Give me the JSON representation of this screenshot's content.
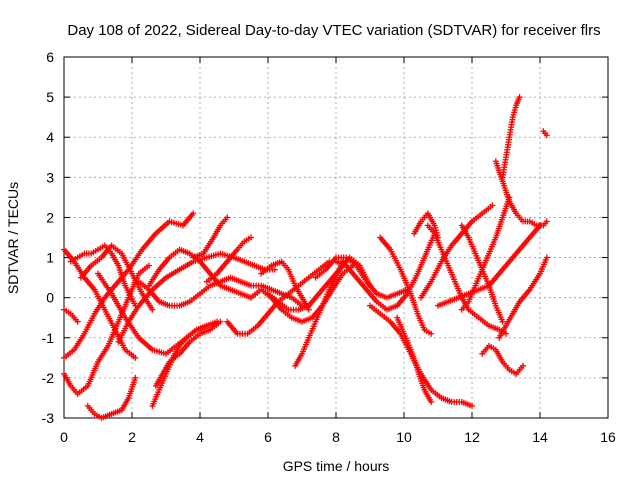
{
  "chart_data": {
    "type": "scatter",
    "title": "Day 108 of 2022, Sidereal Day-to-day VTEC variation (SDTVAR) for receiver flrs",
    "xlabel": "GPS time / hours",
    "ylabel": "SDTVAR / TECUs",
    "xlim": [
      0,
      16
    ],
    "ylim": [
      -3,
      6
    ],
    "xticks": [
      0,
      2,
      4,
      6,
      8,
      10,
      12,
      14,
      16
    ],
    "yticks": [
      -3,
      -2,
      -1,
      0,
      1,
      2,
      3,
      4,
      5,
      6
    ],
    "grid": true,
    "marker": "+",
    "color": "#ff0000",
    "series": [
      {
        "x": [
          0.0,
          0.3,
          0.6,
          0.9,
          1.2,
          1.5,
          1.8,
          2.1
        ],
        "y": [
          1.2,
          0.9,
          0.5,
          0.2,
          -0.3,
          -0.8,
          -1.3,
          -1.5
        ]
      },
      {
        "x": [
          0.0,
          0.3,
          0.6,
          0.9,
          1.2,
          1.5,
          1.9,
          2.3,
          2.7,
          3.1,
          3.5,
          3.8
        ],
        "y": [
          -1.5,
          -1.3,
          -0.9,
          -0.4,
          0.0,
          0.3,
          0.7,
          1.2,
          1.6,
          1.9,
          1.8,
          2.1
        ]
      },
      {
        "x": [
          0.0,
          0.2,
          0.4,
          0.7,
          1.0,
          1.3,
          1.6,
          1.9,
          2.2,
          2.5
        ],
        "y": [
          -1.9,
          -2.2,
          -2.4,
          -2.2,
          -1.6,
          -1.2,
          -0.6,
          0.0,
          0.6,
          0.8
        ]
      },
      {
        "x": [
          0.2,
          0.4,
          0.6,
          0.8,
          1.0,
          1.2,
          1.4,
          1.6,
          1.8,
          2.1
        ],
        "y": [
          0.9,
          1.0,
          1.1,
          1.1,
          1.2,
          1.3,
          1.1,
          0.8,
          0.3,
          -0.2
        ]
      },
      {
        "x": [
          0.0,
          0.2,
          0.4
        ],
        "y": [
          -0.3,
          -0.4,
          -0.6
        ]
      },
      {
        "x": [
          0.7,
          0.9,
          1.1,
          1.4,
          1.7,
          1.9,
          2.1
        ],
        "y": [
          -2.7,
          -2.9,
          -3.0,
          -2.9,
          -2.8,
          -2.5,
          -2.0
        ]
      },
      {
        "x": [
          0.5,
          0.8,
          1.1,
          1.4,
          1.7,
          2.0,
          2.3,
          2.6
        ],
        "y": [
          0.5,
          0.8,
          1.0,
          1.3,
          1.1,
          0.6,
          0.1,
          -0.3
        ]
      },
      {
        "x": [
          1.0,
          1.4,
          1.8,
          2.2,
          2.6,
          3.0,
          3.3,
          3.6,
          3.9,
          4.2,
          4.5
        ],
        "y": [
          0.6,
          0.1,
          -0.5,
          -1.0,
          -1.3,
          -1.4,
          -1.2,
          -1.0,
          -0.8,
          -0.7,
          -0.6
        ]
      },
      {
        "x": [
          1.6,
          1.9,
          2.2,
          2.6,
          3.0,
          3.4,
          3.8,
          4.2,
          4.6,
          5.0,
          5.3,
          5.6,
          5.9,
          6.2
        ],
        "y": [
          -1.1,
          -0.6,
          -0.2,
          0.2,
          0.5,
          0.7,
          0.9,
          1.0,
          1.1,
          1.0,
          0.9,
          0.8,
          0.7,
          0.7
        ]
      },
      {
        "x": [
          2.2,
          2.5,
          2.8,
          3.1,
          3.4,
          3.7,
          4.0,
          4.3,
          4.6,
          4.9,
          5.2,
          5.5,
          5.8,
          6.1,
          6.4,
          6.7,
          7.0
        ],
        "y": [
          0.4,
          0.2,
          -0.1,
          -0.2,
          -0.2,
          -0.1,
          0.1,
          0.3,
          0.4,
          0.5,
          0.4,
          0.3,
          0.3,
          0.2,
          0.1,
          0.0,
          -0.2
        ]
      },
      {
        "x": [
          2.5,
          2.8,
          3.1,
          3.4,
          3.7,
          4.0,
          4.3,
          4.6,
          4.9,
          5.2,
          5.5
        ],
        "y": [
          0.3,
          0.7,
          1.0,
          1.2,
          1.1,
          0.9,
          0.6,
          0.3,
          0.2,
          0.1,
          0.0
        ]
      },
      {
        "x": [
          2.6,
          2.8,
          3.0,
          3.2,
          3.4,
          3.6,
          3.9,
          4.2
        ],
        "y": [
          -2.7,
          -2.3,
          -1.9,
          -1.5,
          -1.2,
          -1.0,
          -0.8,
          -0.7
        ]
      },
      {
        "x": [
          2.7,
          2.9,
          3.1,
          3.4,
          3.7,
          4.0,
          4.3,
          4.6
        ],
        "y": [
          -2.2,
          -1.9,
          -1.6,
          -1.4,
          -1.1,
          -0.9,
          -0.8,
          -0.6
        ]
      },
      {
        "x": [
          3.8,
          4.1,
          4.4,
          4.6,
          4.8
        ],
        "y": [
          1.0,
          1.1,
          1.5,
          1.8,
          2.0
        ]
      },
      {
        "x": [
          4.2,
          4.5,
          4.8,
          5.1,
          5.3,
          5.5
        ],
        "y": [
          0.4,
          0.6,
          0.9,
          1.2,
          1.4,
          1.5
        ]
      },
      {
        "x": [
          4.8,
          5.1,
          5.4,
          5.7,
          6.0,
          6.3,
          6.6,
          6.9,
          7.2,
          7.5,
          7.8
        ],
        "y": [
          -0.6,
          -0.9,
          -0.9,
          -0.7,
          -0.4,
          -0.1,
          0.1,
          0.3,
          0.5,
          0.7,
          0.9
        ]
      },
      {
        "x": [
          5.5,
          5.8,
          6.1,
          6.4,
          6.7,
          7.0,
          7.3,
          7.6,
          7.9,
          8.2,
          8.5
        ],
        "y": [
          0.0,
          0.2,
          0.0,
          -0.3,
          -0.5,
          -0.6,
          -0.5,
          -0.2,
          0.2,
          0.6,
          0.8
        ]
      },
      {
        "x": [
          5.8,
          6.1,
          6.4,
          6.6,
          6.8,
          7.0,
          7.2
        ],
        "y": [
          0.6,
          0.8,
          0.9,
          0.7,
          0.3,
          0.0,
          -0.3
        ]
      },
      {
        "x": [
          6.8,
          7.0,
          7.2,
          7.4,
          7.6,
          7.8,
          8.0,
          8.2
        ],
        "y": [
          -1.7,
          -1.4,
          -1.0,
          -0.6,
          -0.2,
          0.2,
          0.5,
          0.9
        ]
      },
      {
        "x": [
          6.0,
          6.3,
          6.6,
          6.9,
          7.2,
          7.5,
          7.8,
          8.1,
          8.4,
          8.7,
          9.0
        ],
        "y": [
          0.1,
          -0.1,
          -0.3,
          -0.3,
          -0.2,
          0.1,
          0.4,
          0.7,
          1.0,
          0.8,
          0.3
        ]
      },
      {
        "x": [
          7.4,
          7.7,
          8.0,
          8.3,
          8.6,
          8.9,
          9.2,
          9.5,
          9.8,
          10.1
        ],
        "y": [
          0.5,
          0.7,
          1.0,
          1.0,
          0.8,
          0.4,
          0.1,
          0.0,
          0.1,
          0.2
        ]
      },
      {
        "x": [
          8.0,
          8.3,
          8.6,
          8.9,
          9.2,
          9.5,
          9.8,
          10.1,
          10.4,
          10.7,
          10.9
        ],
        "y": [
          0.9,
          0.8,
          0.5,
          0.2,
          -0.1,
          -0.3,
          -0.2,
          0.1,
          0.6,
          1.2,
          1.6
        ]
      },
      {
        "x": [
          9.0,
          9.3,
          9.6,
          9.9,
          10.2,
          10.5,
          10.8,
          11.1,
          11.4,
          11.7,
          12.0
        ],
        "y": [
          -0.2,
          -0.4,
          -0.6,
          -0.9,
          -1.4,
          -1.9,
          -2.3,
          -2.5,
          -2.6,
          -2.6,
          -2.7
        ]
      },
      {
        "x": [
          9.3,
          9.6,
          9.9,
          10.2,
          10.4,
          10.6,
          10.8
        ],
        "y": [
          1.5,
          1.2,
          0.7,
          0.1,
          -0.4,
          -0.8,
          -0.9
        ]
      },
      {
        "x": [
          9.8,
          10.0,
          10.2,
          10.4,
          10.6,
          10.8
        ],
        "y": [
          -0.5,
          -0.9,
          -1.3,
          -1.8,
          -2.3,
          -2.6
        ]
      },
      {
        "x": [
          10.3,
          10.5,
          10.7,
          10.9,
          11.0
        ],
        "y": [
          1.6,
          1.9,
          2.1,
          1.8,
          1.5
        ]
      },
      {
        "x": [
          10.7,
          10.9,
          11.1,
          11.3,
          11.5,
          11.7,
          11.9,
          12.2,
          12.5,
          12.8,
          13.0
        ],
        "y": [
          1.8,
          1.6,
          1.2,
          0.8,
          0.4,
          0.0,
          -0.3,
          -0.5,
          -0.7,
          -0.8,
          -0.9
        ]
      },
      {
        "x": [
          10.5,
          10.8,
          11.1,
          11.4,
          11.7,
          12.0,
          12.3,
          12.6
        ],
        "y": [
          0.0,
          0.4,
          0.9,
          1.3,
          1.6,
          1.9,
          2.1,
          2.3
        ]
      },
      {
        "x": [
          11.0,
          11.3,
          11.6,
          11.9,
          12.2,
          12.5,
          12.8,
          13.1,
          13.4,
          13.7,
          14.0
        ],
        "y": [
          -0.2,
          -0.1,
          0.0,
          0.1,
          0.2,
          0.3,
          0.6,
          0.9,
          1.2,
          1.5,
          1.8
        ]
      },
      {
        "x": [
          11.7,
          11.9,
          12.1,
          12.3,
          12.5,
          12.7,
          12.9
        ],
        "y": [
          1.8,
          1.5,
          1.1,
          0.7,
          0.3,
          -0.2,
          -0.6
        ]
      },
      {
        "x": [
          11.7,
          11.9,
          12.1,
          12.3,
          12.5,
          12.7,
          12.9,
          13.1
        ],
        "y": [
          -0.3,
          -0.1,
          0.3,
          0.7,
          1.1,
          1.5,
          2.0,
          2.5
        ]
      },
      {
        "x": [
          12.3,
          12.5,
          12.7,
          12.9,
          13.1,
          13.3,
          13.5
        ],
        "y": [
          -1.4,
          -1.2,
          -1.3,
          -1.6,
          -1.8,
          -1.9,
          -1.7
        ]
      },
      {
        "x": [
          12.8,
          13.0,
          13.2,
          13.4,
          13.7,
          14.0,
          14.2
        ],
        "y": [
          -1.0,
          -0.7,
          -0.4,
          -0.1,
          0.2,
          0.6,
          1.0
        ]
      },
      {
        "x": [
          12.7,
          12.9,
          13.1,
          13.3,
          13.5,
          13.7,
          13.9,
          14.1,
          14.2
        ],
        "y": [
          3.4,
          2.9,
          2.4,
          2.1,
          1.9,
          1.9,
          1.8,
          1.8,
          1.9
        ]
      },
      {
        "x": [
          12.9,
          13.0,
          13.1,
          13.2,
          13.3,
          13.4
        ],
        "y": [
          3.0,
          3.5,
          4.0,
          4.5,
          4.8,
          5.0
        ]
      },
      {
        "x": [
          14.1,
          14.2
        ],
        "y": [
          4.15,
          4.05
        ]
      }
    ]
  }
}
